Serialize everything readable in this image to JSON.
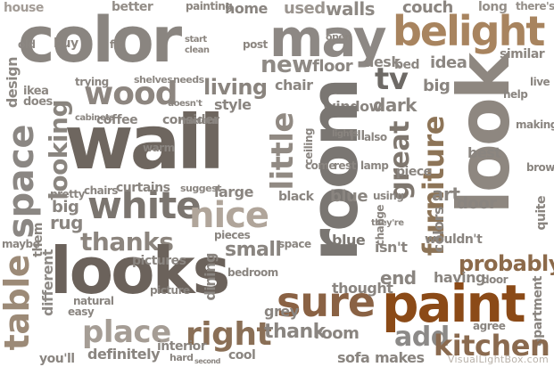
{
  "word_cloud": {
    "words": [
      {
        "text": "color",
        "color": "#8a8580"
      },
      {
        "text": "wall",
        "color": "#6e665f"
      },
      {
        "text": "looks",
        "color": "#6b625b"
      },
      {
        "text": "room",
        "color": "#7a7672"
      },
      {
        "text": "look",
        "color": "#8e8780"
      },
      {
        "text": "paint",
        "color": "#8b4a17"
      },
      {
        "text": "may",
        "color": "#8d8884"
      },
      {
        "text": "belight",
        "color": "#a8845f"
      },
      {
        "text": "table",
        "color": "#9c8a77"
      },
      {
        "text": "space",
        "color": "#8b8783"
      },
      {
        "text": "white",
        "color": "#7b756f"
      },
      {
        "text": "nice",
        "color": "#b0a59a"
      },
      {
        "text": "wood",
        "color": "#8d8680"
      },
      {
        "text": "sure",
        "color": "#8a6244"
      },
      {
        "text": "great",
        "color": "#7f776f"
      },
      {
        "text": "furniture",
        "color": "#8d7457"
      },
      {
        "text": "right",
        "color": "#8a6f56"
      },
      {
        "text": "place",
        "color": "#a59d95"
      },
      {
        "text": "kitchen",
        "color": "#8a6a4f"
      },
      {
        "text": "add",
        "color": "#8c8a88"
      },
      {
        "text": "thanks",
        "color": "#8c857e"
      },
      {
        "text": "probably",
        "color": "#8c6a4a"
      },
      {
        "text": "little",
        "color": "#918a83"
      },
      {
        "text": "tv",
        "color": "#6e6a66"
      },
      {
        "text": "living",
        "color": "#8a847e"
      },
      {
        "text": "different",
        "color": "#8e8a86"
      },
      {
        "text": "looking",
        "color": "#8a857f"
      },
      {
        "text": "new",
        "color": "#8f8a85"
      },
      {
        "text": "couch",
        "color": "#8e8a85"
      },
      {
        "text": "walls",
        "color": "#8f8b87"
      },
      {
        "text": "home",
        "color": "#8b8783"
      },
      {
        "text": "painting",
        "color": "#8e8780"
      },
      {
        "text": "better",
        "color": "#8a8580"
      },
      {
        "text": "house",
        "color": "#8c8782"
      },
      {
        "text": "design",
        "color": "#8c8782"
      },
      {
        "text": "idea",
        "color": "#8c8782"
      },
      {
        "text": "bed",
        "color": "#8c8782"
      },
      {
        "text": "desk",
        "color": "#8c8782"
      },
      {
        "text": "floor",
        "color": "#8c8782"
      },
      {
        "text": "small",
        "color": "#8a8580"
      },
      {
        "text": "dining",
        "color": "#8a8580"
      },
      {
        "text": "definitely",
        "color": "#8a8580"
      },
      {
        "text": "interior",
        "color": "#8a8580"
      },
      {
        "text": "thank",
        "color": "#8a8580"
      },
      {
        "text": "grey",
        "color": "#8a8580"
      },
      {
        "text": "thought",
        "color": "#8a8580"
      },
      {
        "text": "having",
        "color": "#8a8580"
      },
      {
        "text": "stuff",
        "color": "#8a8580"
      },
      {
        "text": "blue",
        "color": "#7c7873"
      },
      {
        "text": "black",
        "color": "#8a8580"
      },
      {
        "text": "art",
        "color": "#8a8580"
      },
      {
        "text": "colors",
        "color": "#8a8580"
      },
      {
        "text": "sofa",
        "color": "#8a8580"
      },
      {
        "text": "makes",
        "color": "#8a8580"
      },
      {
        "text": "rug",
        "color": "#8a8580"
      },
      {
        "text": "big",
        "color": "#8a8580"
      },
      {
        "text": "dark",
        "color": "#8a8580"
      },
      {
        "text": "window",
        "color": "#8a8580"
      },
      {
        "text": "chair",
        "color": "#8a8580"
      },
      {
        "text": "used",
        "color": "#8a8580"
      },
      {
        "text": "coffee",
        "color": "#8a8580"
      },
      {
        "text": "consider",
        "color": "#8a8580"
      },
      {
        "text": "style",
        "color": "#8a8580"
      },
      {
        "text": "large",
        "color": "#8a8580"
      },
      {
        "text": "curtains",
        "color": "#8a8580"
      },
      {
        "text": "pictures",
        "color": "#8a8580"
      },
      {
        "text": "bedroom",
        "color": "#8a8580"
      },
      {
        "text": "best",
        "color": "#8a8580"
      },
      {
        "text": "door",
        "color": "#8a8580"
      },
      {
        "text": "end",
        "color": "#8a8580"
      },
      {
        "text": "isn't",
        "color": "#8a8580"
      },
      {
        "text": "high",
        "color": "#8a8580"
      },
      {
        "text": "wouldn't",
        "color": "#8a8580"
      },
      {
        "text": "similar",
        "color": "#8a8580"
      },
      {
        "text": "long",
        "color": "#8a8580"
      },
      {
        "text": "there's",
        "color": "#8a8580"
      },
      {
        "text": "buy",
        "color": "#8a8580"
      },
      {
        "text": "fit",
        "color": "#8a8580"
      },
      {
        "text": "post",
        "color": "#8a8580"
      },
      {
        "text": "doesn't",
        "color": "#8a8580"
      },
      {
        "text": "ikea",
        "color": "#8a8580"
      },
      {
        "text": "does",
        "color": "#8a8580"
      },
      {
        "text": "old",
        "color": "#8a8580"
      },
      {
        "text": "shelves",
        "color": "#8a8580"
      },
      {
        "text": "needs",
        "color": "#8a8580"
      },
      {
        "text": "modern",
        "color": "#8a8580"
      },
      {
        "text": "suggest",
        "color": "#8a8580"
      },
      {
        "text": "pieces",
        "color": "#8a8580"
      },
      {
        "text": "lamp",
        "color": "#8a8580"
      },
      {
        "text": "come",
        "color": "#8a8580"
      },
      {
        "text": "rest",
        "color": "#8a8580"
      },
      {
        "text": "i'll",
        "color": "#8a8580"
      },
      {
        "text": "also",
        "color": "#8a8580"
      },
      {
        "text": "ceiling",
        "color": "#8a8580"
      },
      {
        "text": "lights",
        "color": "#8a8580"
      },
      {
        "text": "piece",
        "color": "#8a8580"
      },
      {
        "text": "open",
        "color": "#8a8580"
      },
      {
        "text": "using",
        "color": "#8a8580"
      },
      {
        "text": "change",
        "color": "#8a8580"
      },
      {
        "text": "they're",
        "color": "#8a8580"
      },
      {
        "text": "them",
        "color": "#8a8580"
      },
      {
        "text": "maybe",
        "color": "#8a8580"
      },
      {
        "text": "second",
        "color": "#8a8580"
      },
      {
        "text": "hard",
        "color": "#8a8580"
      },
      {
        "text": "cool",
        "color": "#8a8580"
      },
      {
        "text": "you'll",
        "color": "#8a8580"
      },
      {
        "text": "picture",
        "color": "#8a8580"
      },
      {
        "text": "apartment",
        "color": "#8a8580"
      },
      {
        "text": "agree",
        "color": "#8a8580"
      },
      {
        "text": "making",
        "color": "#8a8580"
      },
      {
        "text": "brown",
        "color": "#8a8580"
      },
      {
        "text": "live",
        "color": "#8a8580"
      },
      {
        "text": "help",
        "color": "#8a8580"
      },
      {
        "text": "quite",
        "color": "#8a8580"
      },
      {
        "text": "trying",
        "color": "#8a8580"
      },
      {
        "text": "cabinets",
        "color": "#8a8580"
      },
      {
        "text": "chairs",
        "color": "#8a8580"
      },
      {
        "text": "pretty",
        "color": "#8a8580"
      },
      {
        "text": "warm",
        "color": "#8a8580"
      },
      {
        "text": "natural",
        "color": "#8a8580"
      },
      {
        "text": "easy",
        "color": "#8a8580"
      },
      {
        "text": "start",
        "color": "#8a8580"
      },
      {
        "text": "clean",
        "color": "#8a8580"
      }
    ],
    "watermark": "VisualLightBox.com"
  }
}
